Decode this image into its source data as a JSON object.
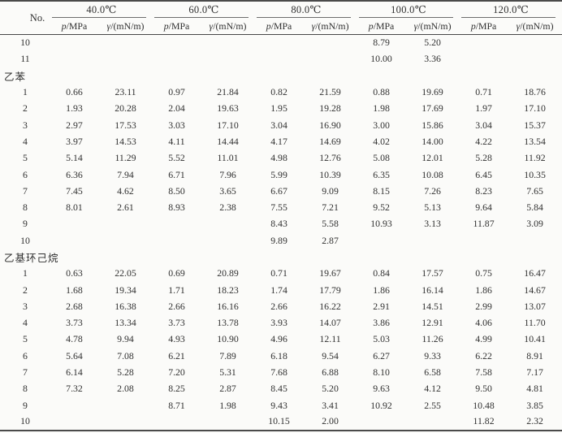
{
  "table": {
    "no_header": "No.",
    "groups": [
      {
        "temp": "40.0℃"
      },
      {
        "temp": "60.0℃"
      },
      {
        "temp": "80.0℃"
      },
      {
        "temp": "100.0℃"
      },
      {
        "temp": "120.0℃"
      }
    ],
    "sub": {
      "p_sym": "p",
      "p_rest": "/MPa",
      "g_sym": "γ",
      "g_rest": "/(mN/m)"
    },
    "sections": [
      {
        "label": "",
        "rows": [
          {
            "no": "10",
            "values": [
              "",
              "",
              "",
              "",
              "",
              "",
              "8.79",
              "5.20",
              "",
              ""
            ]
          },
          {
            "no": "11",
            "values": [
              "",
              "",
              "",
              "",
              "",
              "",
              "10.00",
              "3.36",
              "",
              ""
            ]
          }
        ]
      },
      {
        "label": "乙苯",
        "rows": [
          {
            "no": "1",
            "values": [
              "0.66",
              "23.11",
              "0.97",
              "21.84",
              "0.82",
              "21.59",
              "0.88",
              "19.69",
              "0.71",
              "18.76"
            ]
          },
          {
            "no": "2",
            "values": [
              "1.93",
              "20.28",
              "2.04",
              "19.63",
              "1.95",
              "19.28",
              "1.98",
              "17.69",
              "1.97",
              "17.10"
            ]
          },
          {
            "no": "3",
            "values": [
              "2.97",
              "17.53",
              "3.03",
              "17.10",
              "3.04",
              "16.90",
              "3.00",
              "15.86",
              "3.04",
              "15.37"
            ]
          },
          {
            "no": "4",
            "values": [
              "3.97",
              "14.53",
              "4.11",
              "14.44",
              "4.17",
              "14.69",
              "4.02",
              "14.00",
              "4.22",
              "13.54"
            ]
          },
          {
            "no": "5",
            "values": [
              "5.14",
              "11.29",
              "5.52",
              "11.01",
              "4.98",
              "12.76",
              "5.08",
              "12.01",
              "5.28",
              "11.92"
            ]
          },
          {
            "no": "6",
            "values": [
              "6.36",
              "7.94",
              "6.71",
              "7.96",
              "5.99",
              "10.39",
              "6.35",
              "10.08",
              "6.45",
              "10.35"
            ]
          },
          {
            "no": "7",
            "values": [
              "7.45",
              "4.62",
              "8.50",
              "3.65",
              "6.67",
              "9.09",
              "8.15",
              "7.26",
              "8.23",
              "7.65"
            ]
          },
          {
            "no": "8",
            "values": [
              "8.01",
              "2.61",
              "8.93",
              "2.38",
              "7.55",
              "7.21",
              "9.52",
              "5.13",
              "9.64",
              "5.84"
            ]
          },
          {
            "no": "9",
            "values": [
              "",
              "",
              "",
              "",
              "8.43",
              "5.58",
              "10.93",
              "3.13",
              "11.87",
              "3.09"
            ]
          },
          {
            "no": "10",
            "values": [
              "",
              "",
              "",
              "",
              "9.89",
              "2.87",
              "",
              "",
              "",
              ""
            ]
          }
        ]
      },
      {
        "label": "乙基环己烷",
        "rows": [
          {
            "no": "1",
            "values": [
              "0.63",
              "22.05",
              "0.69",
              "20.89",
              "0.71",
              "19.67",
              "0.84",
              "17.57",
              "0.75",
              "16.47"
            ]
          },
          {
            "no": "2",
            "values": [
              "1.68",
              "19.34",
              "1.71",
              "18.23",
              "1.74",
              "17.79",
              "1.86",
              "16.14",
              "1.86",
              "14.67"
            ]
          },
          {
            "no": "3",
            "values": [
              "2.68",
              "16.38",
              "2.66",
              "16.16",
              "2.66",
              "16.22",
              "2.91",
              "14.51",
              "2.99",
              "13.07"
            ]
          },
          {
            "no": "4",
            "values": [
              "3.73",
              "13.34",
              "3.73",
              "13.78",
              "3.93",
              "14.07",
              "3.86",
              "12.91",
              "4.06",
              "11.70"
            ]
          },
          {
            "no": "5",
            "values": [
              "4.78",
              "9.94",
              "4.93",
              "10.90",
              "4.96",
              "12.11",
              "5.03",
              "11.26",
              "4.99",
              "10.41"
            ]
          },
          {
            "no": "6",
            "values": [
              "5.64",
              "7.08",
              "6.21",
              "7.89",
              "6.18",
              "9.54",
              "6.27",
              "9.33",
              "6.22",
              "8.91"
            ]
          },
          {
            "no": "7",
            "values": [
              "6.14",
              "5.28",
              "7.20",
              "5.31",
              "7.68",
              "6.88",
              "8.10",
              "6.58",
              "7.58",
              "7.17"
            ]
          },
          {
            "no": "8",
            "values": [
              "7.32",
              "2.08",
              "8.25",
              "2.87",
              "8.45",
              "5.20",
              "9.63",
              "4.12",
              "9.50",
              "4.81"
            ]
          },
          {
            "no": "9",
            "values": [
              "",
              "",
              "8.71",
              "1.98",
              "9.43",
              "3.41",
              "10.92",
              "2.55",
              "10.48",
              "3.85"
            ]
          },
          {
            "no": "10",
            "values": [
              "",
              "",
              "",
              "",
              "10.15",
              "2.00",
              "",
              "",
              "11.82",
              "2.32"
            ]
          }
        ]
      }
    ]
  }
}
